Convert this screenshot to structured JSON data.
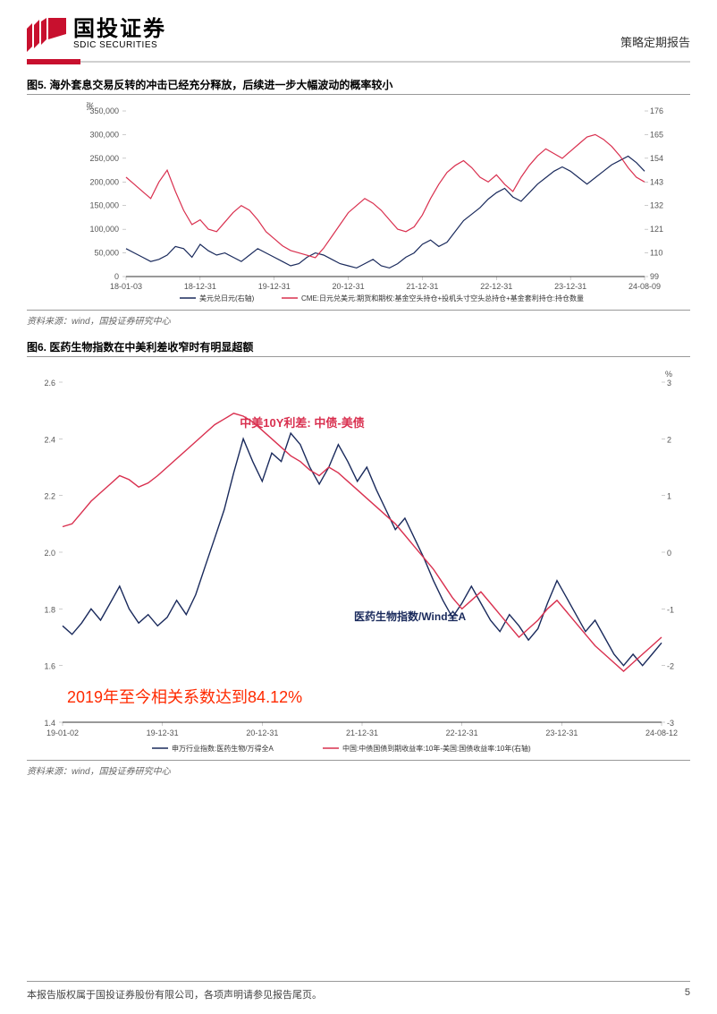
{
  "header": {
    "company_cn": "国投证券",
    "company_en": "SDIC SECURITIES",
    "report_type": "策略定期报告",
    "logo_color": "#c8102e"
  },
  "chart5": {
    "title": "图5. 海外套息交易反转的冲击已经充分释放，后续进一步大幅波动的概率较小",
    "source": "资料来源：wind，国投证券研究中心",
    "type": "line",
    "x_labels": [
      "18-01-03",
      "18-12-31",
      "19-12-31",
      "20-12-31",
      "21-12-31",
      "22-12-31",
      "23-12-31",
      "24-08-09"
    ],
    "left_axis": {
      "min": 0,
      "max": 350000,
      "step": 50000,
      "unit_label": "张"
    },
    "right_axis": {
      "min": 99,
      "max": 176,
      "step": 11
    },
    "series": [
      {
        "name": "美元兑日元(右轴)",
        "color": "#1a2a5c",
        "axis": "right",
        "data": [
          112,
          110,
          108,
          106,
          107,
          109,
          113,
          112,
          108,
          114,
          111,
          109,
          110,
          108,
          106,
          109,
          112,
          110,
          108,
          106,
          104,
          105,
          108,
          110,
          109,
          107,
          105,
          104,
          103,
          105,
          107,
          104,
          103,
          105,
          108,
          110,
          114,
          116,
          113,
          115,
          120,
          125,
          128,
          131,
          135,
          138,
          140,
          136,
          134,
          138,
          142,
          145,
          148,
          150,
          148,
          145,
          142,
          145,
          148,
          151,
          153,
          155,
          152,
          148
        ]
      },
      {
        "name": "CME:日元兑美元:期货和期权:基金空头持仓+投机头寸空头总持仓+基金套利持仓:持仓数量",
        "color": "#d9304f",
        "axis": "left",
        "data": [
          210000,
          195000,
          180000,
          165000,
          200000,
          225000,
          180000,
          140000,
          110000,
          120000,
          100000,
          95000,
          115000,
          135000,
          150000,
          140000,
          120000,
          95000,
          80000,
          65000,
          55000,
          50000,
          45000,
          40000,
          60000,
          85000,
          110000,
          135000,
          150000,
          165000,
          155000,
          140000,
          120000,
          100000,
          95000,
          105000,
          130000,
          165000,
          195000,
          220000,
          235000,
          245000,
          230000,
          210000,
          200000,
          215000,
          195000,
          180000,
          210000,
          235000,
          255000,
          270000,
          260000,
          250000,
          265000,
          280000,
          295000,
          300000,
          290000,
          275000,
          255000,
          230000,
          210000,
          200000
        ]
      }
    ],
    "legend_items": [
      "美元兑日元(右轴)",
      "CME:日元兑美元:期货和期权:基金空头持仓+投机头寸空头总持仓+基金套利持仓:持仓数量"
    ]
  },
  "chart6": {
    "title": "图6. 医药生物指数在中美利差收窄时有明显超额",
    "source": "资料来源：wind，国投证券研究中心",
    "type": "line",
    "annotation_main": "2019年至今相关系数达到84.12%",
    "annotation_top_color": "#d9304f",
    "annotation_top": "中美10Y利差: 中债-美债",
    "annotation_mid_color": "#1a2a5c",
    "annotation_mid": "医药生物指数/Wind全A",
    "x_labels": [
      "19-01-02",
      "19-12-31",
      "20-12-31",
      "21-12-31",
      "22-12-31",
      "23-12-31",
      "24-08-12"
    ],
    "left_axis": {
      "min": 1.4,
      "max": 2.6,
      "step": 0.2
    },
    "right_axis": {
      "min": -3,
      "max": 3,
      "step": 1,
      "unit_label": "%"
    },
    "series": [
      {
        "name": "申万行业指数:医药生物/万得全A",
        "color": "#1a2a5c",
        "axis": "left",
        "data": [
          1.74,
          1.71,
          1.75,
          1.8,
          1.76,
          1.82,
          1.88,
          1.8,
          1.75,
          1.78,
          1.74,
          1.77,
          1.83,
          1.78,
          1.85,
          1.95,
          2.05,
          2.15,
          2.28,
          2.4,
          2.32,
          2.25,
          2.35,
          2.32,
          2.42,
          2.38,
          2.3,
          2.24,
          2.3,
          2.38,
          2.32,
          2.25,
          2.3,
          2.22,
          2.15,
          2.08,
          2.12,
          2.05,
          1.98,
          1.9,
          1.83,
          1.77,
          1.82,
          1.88,
          1.82,
          1.76,
          1.72,
          1.78,
          1.74,
          1.69,
          1.73,
          1.82,
          1.9,
          1.84,
          1.78,
          1.72,
          1.76,
          1.7,
          1.64,
          1.6,
          1.64,
          1.6,
          1.64,
          1.68
        ]
      },
      {
        "name": "中国:中债国债到期收益率:10年-美国:国债收益率:10年(右轴)",
        "color": "#d9304f",
        "axis": "right",
        "data": [
          0.45,
          0.5,
          0.7,
          0.9,
          1.05,
          1.2,
          1.35,
          1.28,
          1.15,
          1.22,
          1.35,
          1.5,
          1.65,
          1.8,
          1.95,
          2.1,
          2.25,
          2.35,
          2.45,
          2.4,
          2.3,
          2.15,
          2.0,
          1.85,
          1.7,
          1.6,
          1.45,
          1.35,
          1.5,
          1.4,
          1.25,
          1.1,
          0.95,
          0.8,
          0.65,
          0.5,
          0.3,
          0.1,
          -0.1,
          -0.3,
          -0.55,
          -0.8,
          -1.0,
          -0.85,
          -0.7,
          -0.9,
          -1.1,
          -1.3,
          -1.5,
          -1.35,
          -1.2,
          -1.0,
          -0.85,
          -1.05,
          -1.25,
          -1.45,
          -1.65,
          -1.8,
          -1.95,
          -2.1,
          -1.95,
          -1.8,
          -1.65,
          -1.5
        ]
      }
    ],
    "legend_items": [
      "申万行业指数:医药生物/万得全A",
      "中国:中债国债到期收益率:10年-美国:国债收益率:10年(右轴)"
    ]
  },
  "footer": {
    "copyright": "本报告版权属于国投证券股份有限公司，各项声明请参见报告尾页。",
    "page_number": "5"
  },
  "colors": {
    "brand_red": "#c8102e",
    "navy": "#1a2a5c",
    "chart_red": "#d9304f",
    "gray": "#888888"
  }
}
